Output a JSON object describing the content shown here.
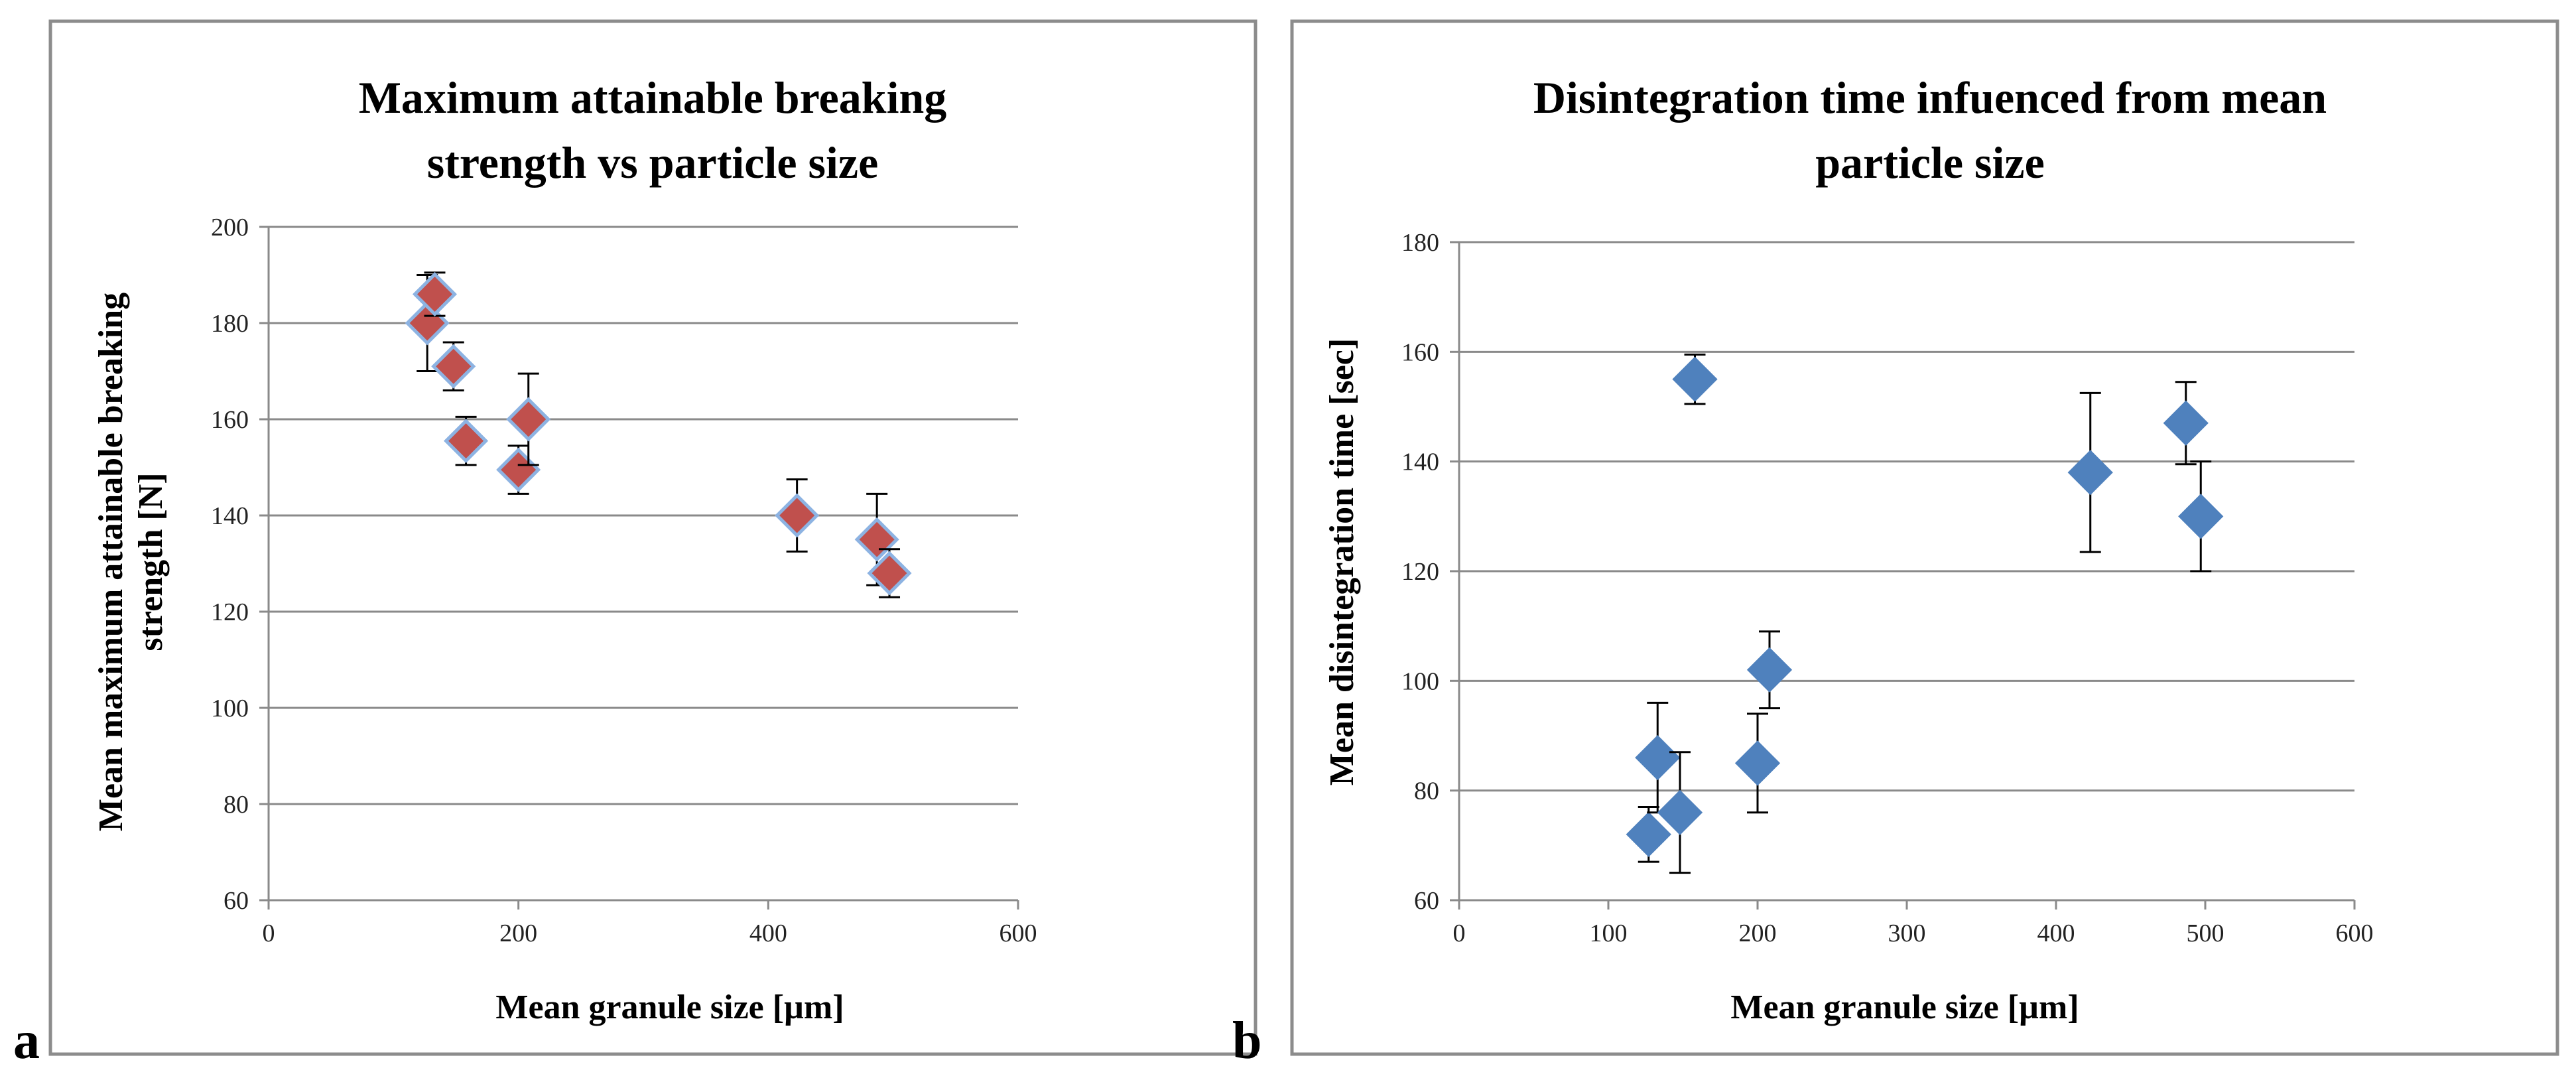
{
  "colors": {
    "frame": "#8c8c8c",
    "grid": "#8a8a8a",
    "axis": "#8a8a8a",
    "marker_blue": "#4f81bd",
    "marker_red": "#c0504d",
    "marker_edge_blue": "#8db3e2",
    "error_bar": "#000000"
  },
  "chart_data": [
    {
      "type": "scatter",
      "panel_label": "a",
      "title": [
        "Maximum  attainable breaking",
        "strength vs particle size"
      ],
      "xlabel": "Mean granule size [µm]",
      "ylabel": [
        "Mean maximum attainable breaking",
        "strength [N]"
      ],
      "xlim": [
        0,
        600
      ],
      "ylim": [
        60,
        200
      ],
      "xticks": [
        0,
        200,
        400,
        600
      ],
      "yticks": [
        60,
        80,
        100,
        120,
        140,
        160,
        180,
        200
      ],
      "grid": "horizontal",
      "marker": "diamond",
      "marker_fill": "#c0504d",
      "marker_edge": "#8db3e2",
      "points": [
        {
          "x": 127,
          "y": 180,
          "err": 10
        },
        {
          "x": 133,
          "y": 186,
          "err": 4.5
        },
        {
          "x": 148,
          "y": 171,
          "err": 5
        },
        {
          "x": 158,
          "y": 155.5,
          "err": 5
        },
        {
          "x": 200,
          "y": 149.5,
          "err": 5
        },
        {
          "x": 208,
          "y": 160,
          "err": 9.5
        },
        {
          "x": 423,
          "y": 140,
          "err": 7.5
        },
        {
          "x": 487,
          "y": 135,
          "err": 9.5
        },
        {
          "x": 497,
          "y": 128,
          "err": 5
        }
      ]
    },
    {
      "type": "scatter",
      "panel_label": "b",
      "title": [
        "Disintegration time infuenced from mean",
        "particle size"
      ],
      "xlabel": "Mean granule size [µm]",
      "ylabel": [
        "Mean disintegration time [sec]"
      ],
      "xlim": [
        0,
        600
      ],
      "ylim": [
        60,
        180
      ],
      "xticks": [
        0,
        100,
        200,
        300,
        400,
        500,
        600
      ],
      "yticks": [
        60,
        80,
        100,
        120,
        140,
        160,
        180
      ],
      "grid": "horizontal",
      "marker": "diamond",
      "marker_fill": "#4f81bd",
      "marker_edge": "#4f81bd",
      "points": [
        {
          "x": 127,
          "y": 72,
          "err": 5
        },
        {
          "x": 133,
          "y": 86,
          "err": 10
        },
        {
          "x": 148,
          "y": 76,
          "err": 11
        },
        {
          "x": 158,
          "y": 155,
          "err": 4.5
        },
        {
          "x": 200,
          "y": 85,
          "err": 9
        },
        {
          "x": 208,
          "y": 102,
          "err": 7
        },
        {
          "x": 423,
          "y": 138,
          "err": 14.5
        },
        {
          "x": 487,
          "y": 147,
          "err": 7.5
        },
        {
          "x": 497,
          "y": 130,
          "err": 10
        }
      ]
    }
  ]
}
